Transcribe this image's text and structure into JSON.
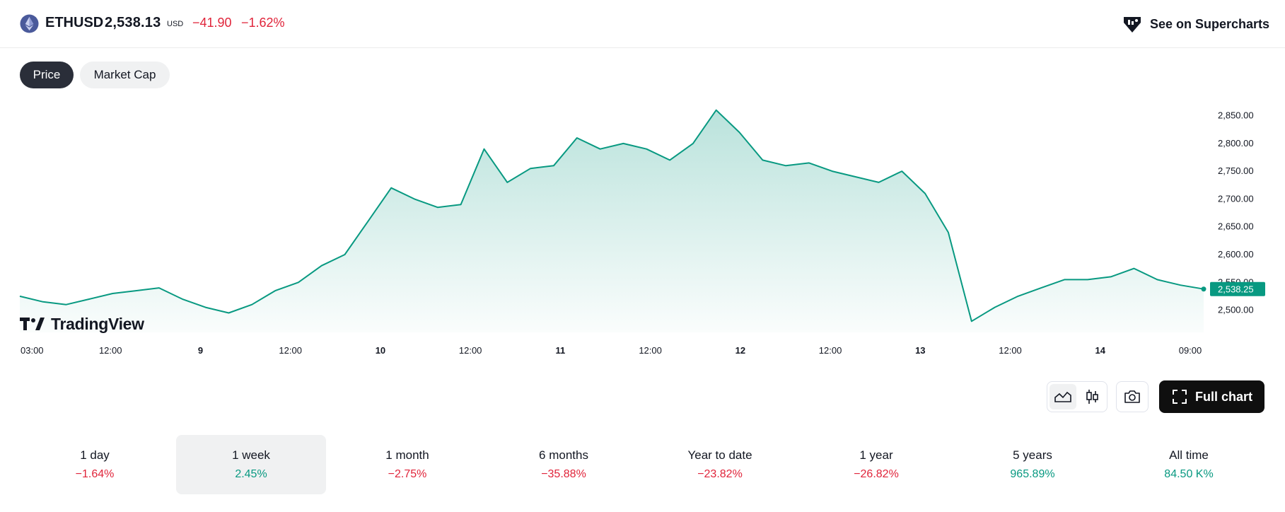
{
  "header": {
    "symbol": "ETHUSD",
    "price": "2,538.13",
    "currency": "USD",
    "change_abs": "−41.90",
    "change_pct": "−1.62%",
    "supercharts_label": "See on Supercharts",
    "logo_icon": "ethereum-icon",
    "supercharts_icon": "tradingview-diamond-icon"
  },
  "tabs": [
    {
      "label": "Price",
      "active": true
    },
    {
      "label": "Market Cap",
      "active": false
    }
  ],
  "branding": {
    "watermark": "TradingView"
  },
  "chart_data": {
    "type": "area",
    "title": "",
    "xlabel": "",
    "ylabel": "",
    "ylim": [
      2460,
      2880
    ],
    "x_ticks": [
      "03:00",
      "12:00",
      "9",
      "12:00",
      "10",
      "12:00",
      "11",
      "12:00",
      "12",
      "12:00",
      "13",
      "12:00",
      "14",
      "09:00"
    ],
    "y_ticks": [
      "2,850.00",
      "2,800.00",
      "2,750.00",
      "2,700.00",
      "2,650.00",
      "2,600.00",
      "2,550.00",
      "2,500.00"
    ],
    "last_value_label": "2,538.25",
    "line_color": "#089981",
    "grid": false,
    "series": [
      {
        "x": [
          "03:00",
          "06:00",
          "09:00",
          "12:00",
          "15:00",
          "18:00",
          "21:00",
          "9",
          "03:00",
          "06:00",
          "09:00",
          "12:00",
          "15:00",
          "18:00",
          "21:00",
          "10",
          "03:00",
          "06:00",
          "09:00",
          "12:00",
          "15:00",
          "18:00",
          "21:00",
          "11",
          "03:00",
          "06:00",
          "09:00",
          "12:00",
          "15:00",
          "18:00",
          "21:00",
          "12",
          "03:00",
          "06:00",
          "09:00",
          "12:00",
          "15:00",
          "18:00",
          "21:00",
          "13",
          "03:00",
          "06:00",
          "09:00",
          "12:00",
          "15:00",
          "18:00",
          "21:00",
          "14",
          "03:00",
          "06:00",
          "09:00",
          "10:00"
        ],
        "values": [
          2525,
          2515,
          2510,
          2520,
          2530,
          2535,
          2540,
          2520,
          2505,
          2495,
          2510,
          2535,
          2550,
          2580,
          2600,
          2660,
          2720,
          2700,
          2685,
          2690,
          2790,
          2730,
          2755,
          2760,
          2810,
          2790,
          2800,
          2790,
          2770,
          2800,
          2860,
          2820,
          2770,
          2760,
          2765,
          2750,
          2740,
          2730,
          2750,
          2710,
          2640,
          2480,
          2505,
          2525,
          2540,
          2555,
          2555,
          2560,
          2575,
          2555,
          2545,
          2538
        ]
      }
    ]
  },
  "toolbar": {
    "line_chart_icon": "area-chart-icon",
    "candle_icon": "candlestick-icon",
    "camera_icon": "camera-icon",
    "full_chart_icon": "fullscreen-icon",
    "full_chart_label": "Full chart"
  },
  "periods": [
    {
      "label": "1 day",
      "value": "−1.64%",
      "trend": "neg",
      "active": false
    },
    {
      "label": "1 week",
      "value": "2.45%",
      "trend": "pos",
      "active": true
    },
    {
      "label": "1 month",
      "value": "−2.75%",
      "trend": "neg",
      "active": false
    },
    {
      "label": "6 months",
      "value": "−35.88%",
      "trend": "neg",
      "active": false
    },
    {
      "label": "Year to date",
      "value": "−23.82%",
      "trend": "neg",
      "active": false
    },
    {
      "label": "1 year",
      "value": "−26.82%",
      "trend": "neg",
      "active": false
    },
    {
      "label": "5 years",
      "value": "965.89%",
      "trend": "pos",
      "active": false
    },
    {
      "label": "All time",
      "value": "84.50 K%",
      "trend": "pos",
      "active": false
    }
  ]
}
